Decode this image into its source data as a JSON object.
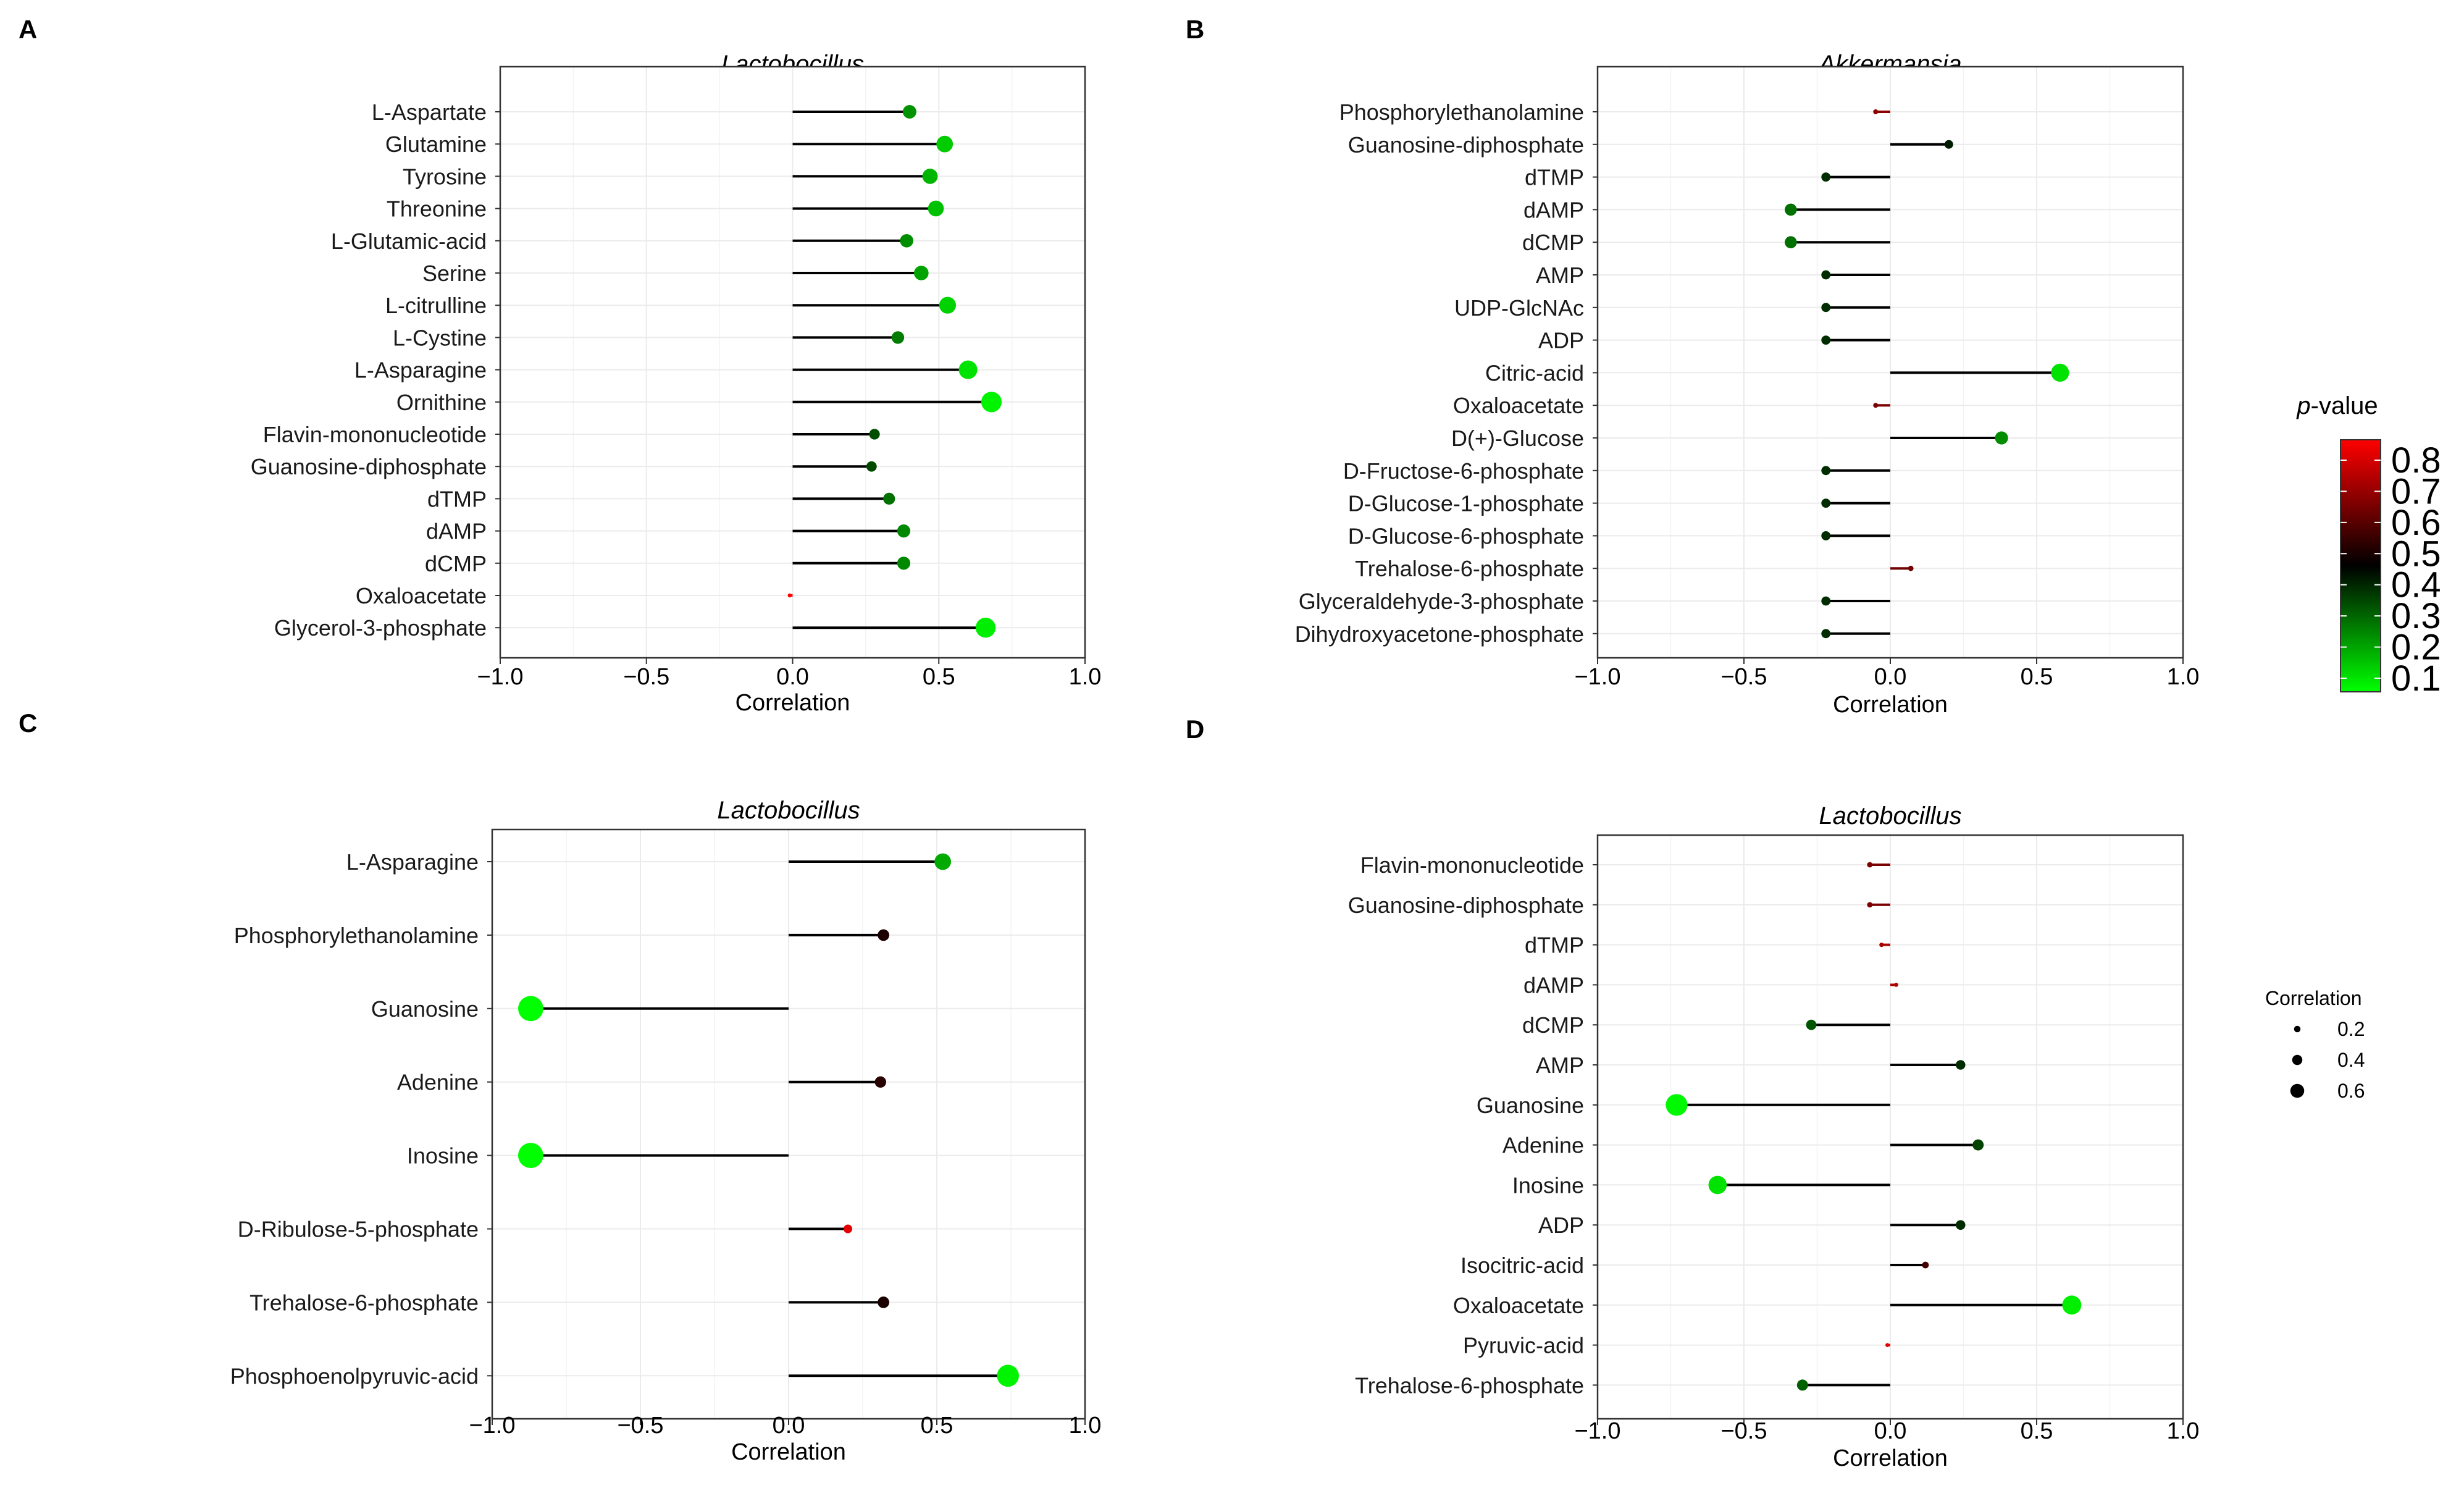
{
  "figure": {
    "colorbar": {
      "title": "p-value",
      "title_italic_part": "p",
      "title_rest": "-value",
      "ticks": [
        "0.8",
        "0.7",
        "0.6",
        "0.5",
        "0.4",
        "0.3",
        "0.2",
        "0.1"
      ],
      "colors": [
        "#ff0000",
        "#000000",
        "#00ff00"
      ]
    },
    "size_legend": {
      "title": "Correlation",
      "items": [
        {
          "label": "0.2",
          "value": 0.2
        },
        {
          "label": "0.4",
          "value": 0.4
        },
        {
          "label": "0.6",
          "value": 0.6
        }
      ]
    }
  },
  "chart_data": [
    {
      "id": "A",
      "panel_label": "A",
      "type": "lollipop",
      "title": "Lactobocillus",
      "xlabel": "Correlation",
      "xlim": [
        -1.0,
        1.0
      ],
      "xticks": [
        "−1.0",
        "−0.5",
        "0.0",
        "0.5",
        "1.0"
      ],
      "xtick_values": [
        -1.0,
        -0.5,
        0.0,
        0.5,
        1.0
      ],
      "categories": [
        "L-Aspartate",
        "Glutamine",
        "Tyrosine",
        "Threonine",
        "L-Glutamic-acid",
        "Serine",
        "L-citrulline",
        "L-Cystine",
        "L-Asparagine",
        "Ornithine",
        "Flavin-mononucleotide",
        "Guanosine-diphosphate",
        "dTMP",
        "dAMP",
        "dCMP",
        "Oxaloacetate",
        "Glycerol-3-phosphate"
      ],
      "values": [
        0.4,
        0.52,
        0.47,
        0.49,
        0.39,
        0.44,
        0.53,
        0.36,
        0.6,
        0.68,
        0.28,
        0.27,
        0.33,
        0.38,
        0.38,
        -0.01,
        0.66
      ],
      "pvalues": [
        0.24,
        0.14,
        0.18,
        0.16,
        0.25,
        0.21,
        0.13,
        0.28,
        0.1,
        0.07,
        0.36,
        0.37,
        0.3,
        0.26,
        0.26,
        0.95,
        0.08
      ]
    },
    {
      "id": "B",
      "panel_label": "B",
      "type": "lollipop",
      "title": "Akkermansia",
      "xlabel": "Correlation",
      "xlim": [
        -1.0,
        1.0
      ],
      "xticks": [
        "−1.0",
        "−0.5",
        "0.0",
        "0.5",
        "1.0"
      ],
      "xtick_values": [
        -1.0,
        -0.5,
        0.0,
        0.5,
        1.0
      ],
      "categories": [
        "Phosphorylethanolamine",
        "Guanosine-diphosphate",
        "dTMP",
        "dAMP",
        "dCMP",
        "AMP",
        "UDP-GlcNAc",
        "ADP",
        "Citric-acid",
        "Oxaloacetate",
        "D(+)-Glucose",
        "D-Fructose-6-phosphate",
        "D-Glucose-1-phosphate",
        "D-Glucose-6-phosphate",
        "Trehalose-6-phosphate",
        "Glyceraldehyde-3-phosphate",
        "Dihydroxyacetone-phosphate"
      ],
      "values": [
        -0.05,
        0.2,
        -0.22,
        -0.34,
        -0.34,
        -0.22,
        -0.22,
        -0.22,
        0.58,
        -0.05,
        0.38,
        -0.22,
        -0.22,
        -0.22,
        0.07,
        -0.22,
        -0.22
      ],
      "pvalues": [
        0.75,
        0.45,
        0.42,
        0.3,
        0.3,
        0.42,
        0.42,
        0.42,
        0.1,
        0.72,
        0.25,
        0.42,
        0.42,
        0.42,
        0.7,
        0.42,
        0.42
      ]
    },
    {
      "id": "C",
      "panel_label": "C",
      "type": "lollipop",
      "title": "Lactobocillus",
      "xlabel": "Correlation",
      "xlim": [
        -1.0,
        1.0
      ],
      "xticks": [
        "−1.0",
        "−0.5",
        "0.0",
        "0.5",
        "1.0"
      ],
      "xtick_values": [
        -1.0,
        -0.5,
        0.0,
        0.5,
        1.0
      ],
      "categories": [
        "L-Asparagine",
        "Phosphorylethanolamine",
        "Guanosine",
        "Adenine",
        "Inosine",
        "D-Ribulose-5-phosphate",
        "Trehalose-6-phosphate",
        "Phosphoenolpyruvic-acid"
      ],
      "values": [
        0.52,
        0.32,
        -0.87,
        0.31,
        -0.87,
        0.2,
        0.32,
        0.74
      ],
      "pvalues": [
        0.2,
        0.55,
        0.05,
        0.57,
        0.05,
        0.9,
        0.55,
        0.07
      ]
    },
    {
      "id": "D",
      "panel_label": "D",
      "type": "lollipop",
      "title": "Lactobocillus",
      "xlabel": "Correlation",
      "xlim": [
        -1.0,
        1.0
      ],
      "xticks": [
        "−1.0",
        "−0.5",
        "0.0",
        "0.5",
        "1.0"
      ],
      "xtick_values": [
        -1.0,
        -0.5,
        0.0,
        0.5,
        1.0
      ],
      "categories": [
        "Flavin-mononucleotide",
        "Guanosine-diphosphate",
        "dTMP",
        "dAMP",
        "dCMP",
        "AMP",
        "Guanosine",
        "Adenine",
        "Inosine",
        "ADP",
        "Isocitric-acid",
        "Oxaloacetate",
        "Pyruvic-acid",
        "Trehalose-6-phosphate"
      ],
      "values": [
        -0.07,
        -0.07,
        -0.03,
        0.02,
        -0.27,
        0.24,
        -0.73,
        0.3,
        -0.59,
        0.24,
        0.12,
        0.62,
        -0.01,
        -0.3
      ],
      "pvalues": [
        0.72,
        0.72,
        0.8,
        0.8,
        0.35,
        0.42,
        0.06,
        0.38,
        0.1,
        0.42,
        0.62,
        0.08,
        0.9,
        0.33
      ]
    }
  ]
}
